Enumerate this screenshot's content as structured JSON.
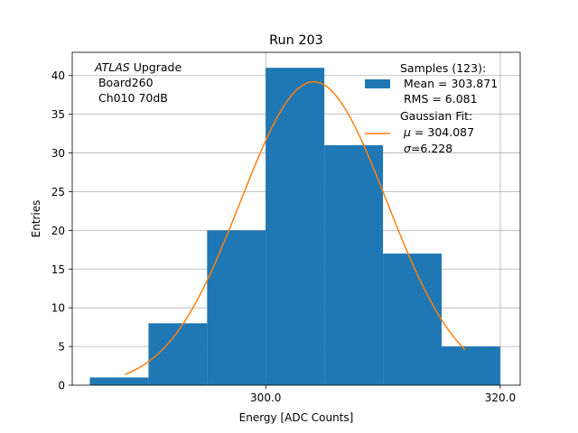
{
  "chart_data": {
    "type": "bar",
    "title": "Run 203",
    "xlabel": "Energy [ADC Counts]",
    "ylabel": "Entries",
    "xlim": [
      283.5,
      321.7
    ],
    "ylim": [
      0,
      43
    ],
    "x_ticks": [
      300.0,
      320.0
    ],
    "x_tick_labels": [
      "300.0",
      "320.0"
    ],
    "y_ticks": [
      0,
      5,
      10,
      15,
      20,
      25,
      30,
      35,
      40
    ],
    "y_tick_labels": [
      "0",
      "5",
      "10",
      "15",
      "20",
      "25",
      "30",
      "35",
      "40"
    ],
    "grid": true,
    "bin_edges": [
      285,
      290,
      295,
      300,
      305,
      310,
      315,
      320
    ],
    "values": [
      1,
      8,
      20,
      41,
      31,
      17,
      5
    ],
    "bar_color": "#1f77b4",
    "fit": {
      "x_start": 288.0,
      "x_end": 317.0,
      "mu": 304.087,
      "sigma": 6.228,
      "amplitude": 39.2,
      "color": "#ff7f0e"
    },
    "annotation": {
      "line1_italic": "ATLAS",
      "line1_rest": " Upgrade",
      "line2": " Board260",
      "line3": " Ch010 70dB"
    },
    "legend": {
      "placement": "top-right",
      "samples": {
        "line1": "Samples (123):",
        "line2": " Mean = 303.871",
        "line3": " RMS = 6.081"
      },
      "fit": {
        "line1": "Gaussian Fit:",
        "line2_symbol": "μ",
        "line2_rest": " = 304.087",
        "line3_symbol": "σ",
        "line3_rest": "=6.228"
      }
    }
  }
}
